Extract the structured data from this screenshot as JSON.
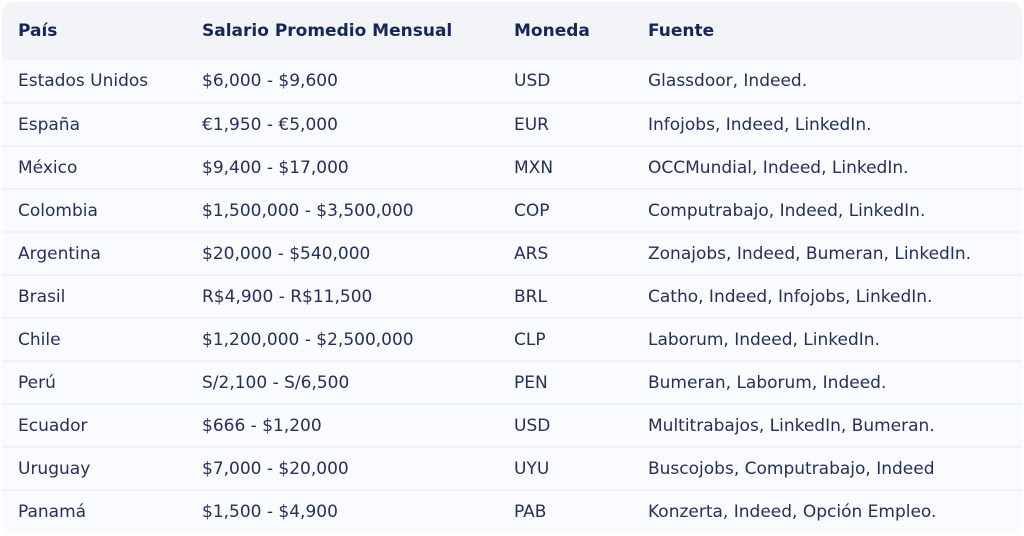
{
  "table": {
    "headers": [
      "País",
      "Salario Promedio Mensual",
      "Moneda",
      "Fuente"
    ],
    "rows": [
      [
        "Estados Unidos",
        "$6,000 - $9,600",
        "USD",
        "Glassdoor, Indeed."
      ],
      [
        "España",
        "€1,950 - €5,000",
        "EUR",
        "Infojobs, Indeed, LinkedIn."
      ],
      [
        "México",
        "$9,400 - $17,000",
        "MXN",
        "OCCMundial, Indeed, LinkedIn."
      ],
      [
        "Colombia",
        "$1,500,000 - $3,500,000",
        "COP",
        "Computrabajo, Indeed, LinkedIn."
      ],
      [
        "Argentina",
        "$20,000 - $540,000",
        "ARS",
        "Zonajobs, Indeed, Bumeran, LinkedIn."
      ],
      [
        "Brasil",
        "R$4,900 - R$11,500",
        "BRL",
        "Catho, Indeed, Infojobs, LinkedIn."
      ],
      [
        "Chile",
        "$1,200,000 - $2,500,000",
        "CLP",
        "Laborum, Indeed, LinkedIn."
      ],
      [
        "Perú",
        "S/2,100 - S/6,500",
        "PEN",
        "Bumeran, Laborum, Indeed."
      ],
      [
        "Ecuador",
        "$666 - $1,200",
        "USD",
        "Multitrabajos, LinkedIn, Bumeran."
      ],
      [
        "Uruguay",
        "$7,000 - $20,000",
        "UYU",
        "Buscojobs, Computrabajo, Indeed"
      ],
      [
        "Panamá",
        "$1,500 - $4,900",
        "PAB",
        "Konzerta, Indeed, Opción Empleo."
      ]
    ]
  }
}
